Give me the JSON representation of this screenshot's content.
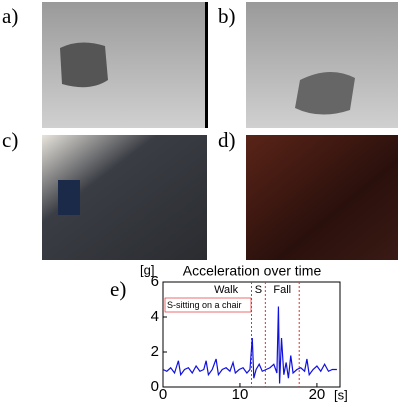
{
  "panels": [
    {
      "label": "a)"
    },
    {
      "label": "b)"
    },
    {
      "label": "c)"
    },
    {
      "label": "d)"
    }
  ],
  "chart_data": {
    "type": "line",
    "panel_label": "e)",
    "title": "Acceleration over time",
    "y_label": "[g]",
    "x_label": "[s]",
    "x": [
      0,
      0.5,
      1,
      1.5,
      2,
      2.3,
      2.8,
      3.3,
      3.8,
      4.3,
      4.8,
      5.3,
      5.6,
      5.9,
      6.4,
      6.9,
      7.2,
      7.7,
      8.2,
      8.7,
      9.1,
      9.4,
      9.9,
      10.4,
      10.9,
      11.3,
      11.6,
      11.8,
      12.1,
      12.5,
      12.9,
      13.4,
      13.9,
      14.4,
      14.8,
      15.0,
      15.15,
      15.4,
      15.7,
      16.0,
      16.3,
      16.6,
      16.9,
      17.4,
      17.9,
      18.4,
      18.7,
      19.0,
      19.5,
      20.0,
      20.5,
      21.0,
      21.5,
      22.0,
      22.6
    ],
    "values": [
      1.0,
      0.9,
      1.1,
      0.8,
      1.5,
      0.7,
      1.0,
      1.1,
      0.8,
      1.2,
      0.9,
      1.0,
      1.5,
      0.7,
      1.0,
      1.6,
      0.7,
      1.0,
      1.1,
      0.9,
      1.4,
      0.8,
      1.0,
      1.1,
      0.8,
      1.0,
      2.8,
      0.5,
      1.0,
      1.3,
      0.9,
      1.0,
      1.1,
      1.3,
      0.8,
      4.6,
      0.2,
      2.8,
      0.7,
      1.4,
      0.5,
      1.8,
      0.8,
      1.0,
      1.1,
      0.9,
      1.6,
      0.7,
      1.0,
      1.2,
      0.9,
      1.3,
      0.9,
      1.0,
      1.0
    ],
    "color": "#1010e0",
    "xlim": [
      0,
      23
    ],
    "ylim": [
      0,
      6
    ],
    "xticks": [
      0,
      10,
      20
    ],
    "yticks": [
      0,
      2,
      4,
      6
    ],
    "phase_lines": [
      11.5,
      13.3,
      17.7
    ],
    "phase_line_color": "#e03030",
    "phase_labels": [
      {
        "text": "Walk",
        "x": 8.2
      },
      {
        "text": "S",
        "x": 12.4
      },
      {
        "text": "Fall",
        "x": 15.5
      }
    ],
    "note": "S-sitting on a chair"
  }
}
